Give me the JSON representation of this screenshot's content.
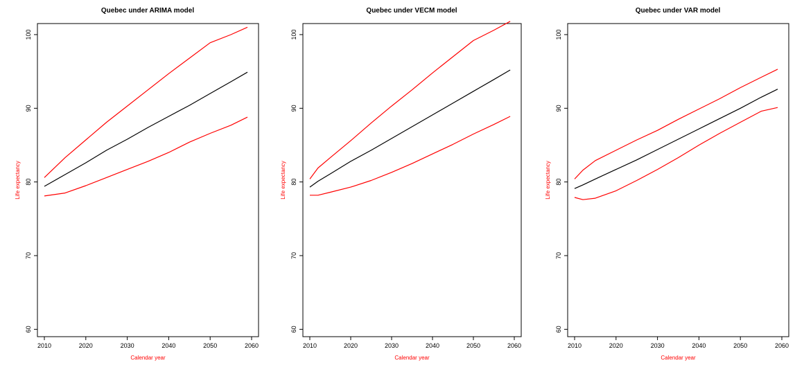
{
  "chart_data": [
    {
      "type": "line",
      "title": "Quebec under ARIMA model",
      "xlabel": "Calendar year",
      "ylabel": "Life expectancy",
      "xlim": [
        2010,
        2060
      ],
      "ylim": [
        59,
        101.5
      ],
      "xticks": [
        2010,
        2020,
        2030,
        2040,
        2050,
        2060
      ],
      "yticks": [
        60,
        70,
        80,
        90,
        100
      ],
      "grid": false,
      "x": [
        2010,
        2015,
        2020,
        2025,
        2030,
        2035,
        2040,
        2045,
        2050,
        2055,
        2059
      ],
      "series": [
        {
          "color": "#ff0000",
          "values": [
            80.6,
            83.3,
            85.7,
            88.1,
            90.3,
            92.5,
            94.7,
            96.8,
            98.9,
            100.0,
            101.0
          ]
        },
        {
          "color": "#000000",
          "values": [
            79.4,
            81.0,
            82.6,
            84.3,
            85.8,
            87.4,
            88.9,
            90.4,
            92.0,
            93.6,
            94.9
          ]
        },
        {
          "color": "#ff0000",
          "values": [
            78.1,
            78.5,
            79.5,
            80.6,
            81.7,
            82.8,
            84.0,
            85.4,
            86.6,
            87.7,
            88.8
          ]
        }
      ]
    },
    {
      "type": "line",
      "title": "Quebec under VECM model",
      "xlabel": "Calendar year",
      "ylabel": "Life expectancy",
      "xlim": [
        2010,
        2060
      ],
      "ylim": [
        59,
        101.5
      ],
      "xticks": [
        2010,
        2020,
        2030,
        2040,
        2050,
        2060
      ],
      "yticks": [
        60,
        70,
        80,
        90,
        100
      ],
      "grid": false,
      "x": [
        2010,
        2012,
        2015,
        2020,
        2025,
        2030,
        2035,
        2040,
        2045,
        2050,
        2055,
        2059
      ],
      "series": [
        {
          "color": "#ff0000",
          "values": [
            80.4,
            81.9,
            83.3,
            85.6,
            88.0,
            90.3,
            92.5,
            94.8,
            97.0,
            99.2,
            100.6,
            101.8
          ]
        },
        {
          "color": "#000000",
          "values": [
            79.3,
            80.1,
            81.1,
            82.8,
            84.3,
            85.9,
            87.5,
            89.1,
            90.7,
            92.3,
            93.9,
            95.2
          ]
        },
        {
          "color": "#ff0000",
          "values": [
            78.2,
            78.2,
            78.6,
            79.3,
            80.2,
            81.3,
            82.5,
            83.8,
            85.1,
            86.5,
            87.8,
            88.9
          ]
        }
      ]
    },
    {
      "type": "line",
      "title": "Quebec under VAR model",
      "xlabel": "Calendar year",
      "ylabel": "Life expectancy",
      "xlim": [
        2010,
        2060
      ],
      "ylim": [
        59,
        101.5
      ],
      "xticks": [
        2010,
        2020,
        2030,
        2040,
        2050,
        2060
      ],
      "yticks": [
        60,
        70,
        80,
        90,
        100
      ],
      "grid": false,
      "x": [
        2010,
        2012,
        2015,
        2020,
        2025,
        2030,
        2035,
        2040,
        2045,
        2050,
        2055,
        2059
      ],
      "series": [
        {
          "color": "#ff0000",
          "values": [
            80.4,
            81.6,
            82.9,
            84.3,
            85.7,
            87.0,
            88.5,
            89.9,
            91.3,
            92.8,
            94.2,
            95.3
          ]
        },
        {
          "color": "#000000",
          "values": [
            79.1,
            79.6,
            80.4,
            81.7,
            83.0,
            84.4,
            85.8,
            87.2,
            88.6,
            90.0,
            91.5,
            92.6
          ]
        },
        {
          "color": "#ff0000",
          "values": [
            77.9,
            77.6,
            77.8,
            78.8,
            80.2,
            81.7,
            83.3,
            85.0,
            86.6,
            88.1,
            89.6,
            90.1
          ]
        }
      ]
    }
  ],
  "styles": {
    "axis_label_color": "#ff0000",
    "axis_color": "#000000",
    "box_color": "#000000"
  }
}
